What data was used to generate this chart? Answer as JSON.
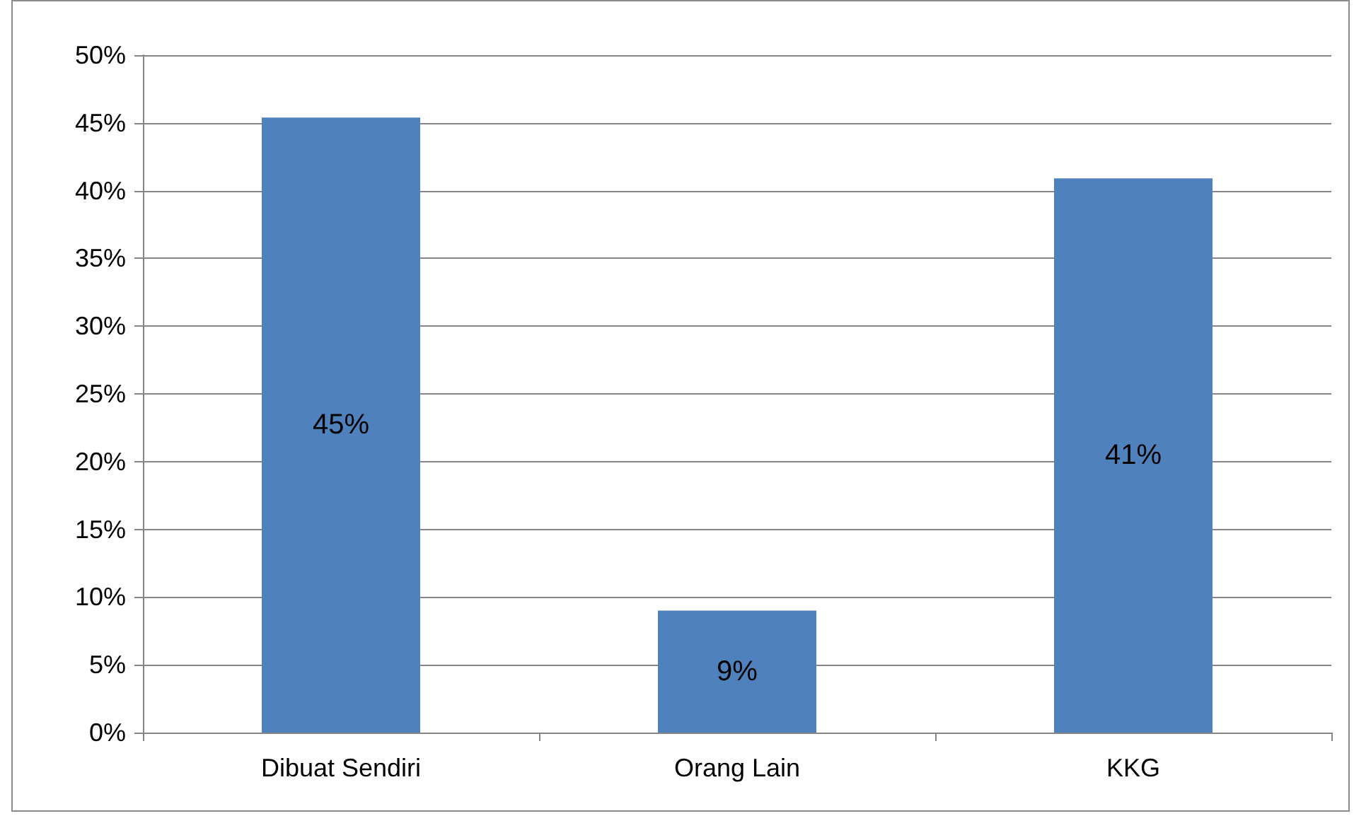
{
  "chart_data": {
    "type": "bar",
    "categories": [
      "Dibuat Sendiri",
      "Orang Lain",
      "KKG"
    ],
    "values": [
      45.4,
      9.0,
      40.9
    ],
    "value_labels": [
      "45%",
      "9%",
      "41%"
    ],
    "color": "#4f81bd",
    "ylim": [
      0,
      50
    ],
    "yticks": [
      {
        "value": 0,
        "label": "0%"
      },
      {
        "value": 5,
        "label": "5%"
      },
      {
        "value": 10,
        "label": "10%"
      },
      {
        "value": 15,
        "label": "15%"
      },
      {
        "value": 20,
        "label": "20%"
      },
      {
        "value": 25,
        "label": "25%"
      },
      {
        "value": 30,
        "label": "30%"
      },
      {
        "value": 35,
        "label": "35%"
      },
      {
        "value": 40,
        "label": "40%"
      },
      {
        "value": 45,
        "label": "45%"
      },
      {
        "value": 50,
        "label": "50%"
      }
    ],
    "grid": "y"
  }
}
